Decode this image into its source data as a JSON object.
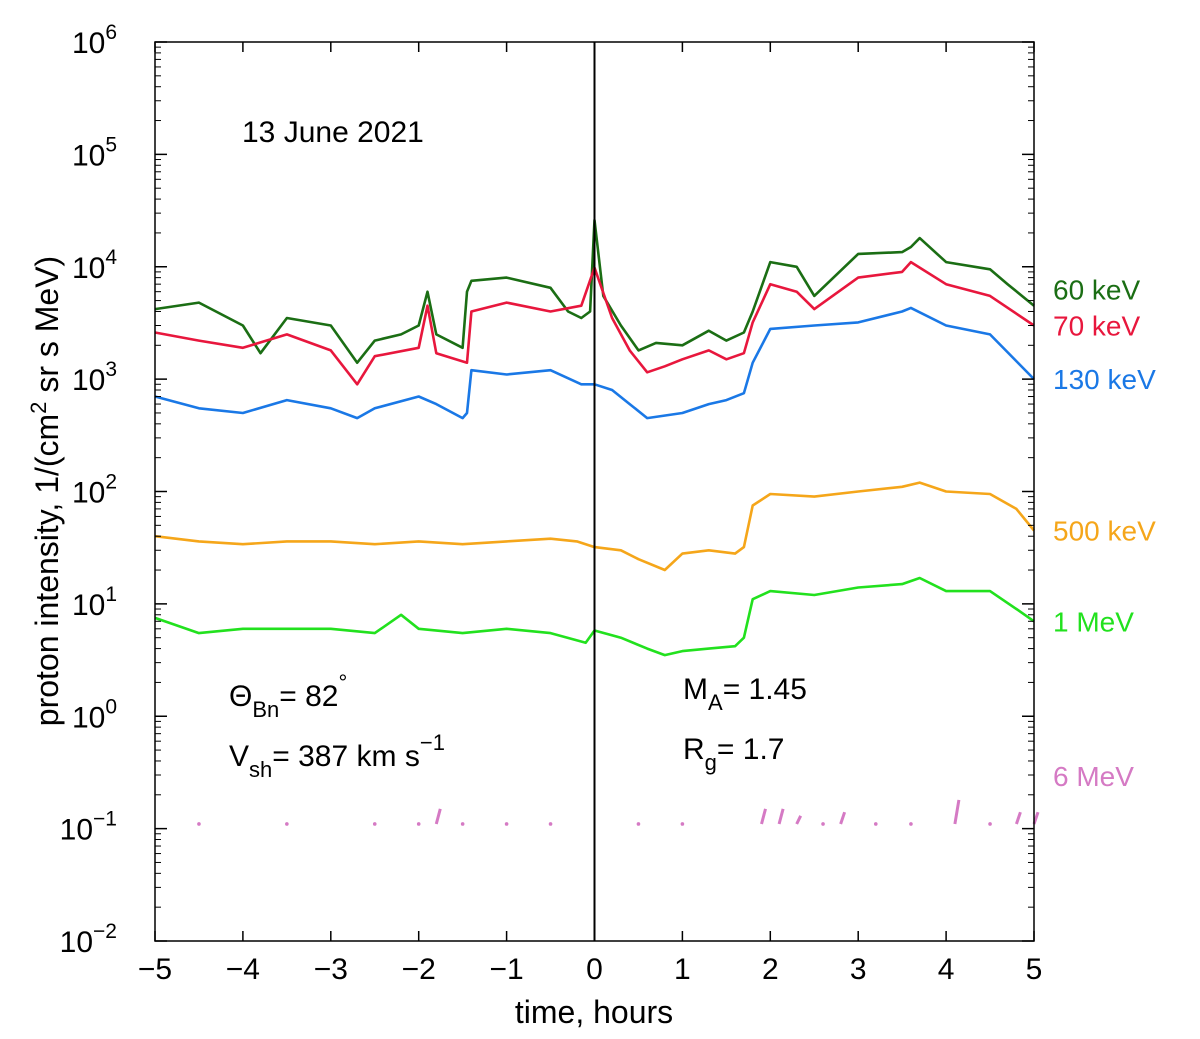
{
  "chart_data": {
    "type": "line",
    "title": "",
    "annotation_date": "13 June 2021",
    "xlabel": "time, hours",
    "ylabel_main": "proton intensity, 1/(cm",
    "ylabel_sup": "2",
    "ylabel_end": " sr s MeV)",
    "xlim": [
      -5,
      5
    ],
    "ylim_log10": [
      -2,
      6
    ],
    "x_ticks": [
      -5,
      -4,
      -3,
      -2,
      -1,
      0,
      1,
      2,
      3,
      4,
      5
    ],
    "x_tick_labels": [
      "−5",
      "−4",
      "−3",
      "−2",
      "−1",
      "0",
      "1",
      "2",
      "3",
      "4",
      "5"
    ],
    "y_tick_exponents": [
      -2,
      -1,
      0,
      1,
      2,
      3,
      4,
      5,
      6
    ],
    "y_tick_exponent_labels": [
      "−2",
      "−1",
      "0",
      "1",
      "2",
      "3",
      "4",
      "5",
      "6"
    ],
    "y_tick_base": "10",
    "shock_time": 0,
    "parameters": {
      "theta": {
        "symbol": "Θ",
        "sub": "Bn",
        "rest": "= 82",
        "sup": "°"
      },
      "vsh": {
        "symbol": "V",
        "sub": "sh",
        "rest": "= 387 km s",
        "sup": "−1"
      },
      "ma": {
        "symbol": "M",
        "sub": "A",
        "rest": "= 1.45"
      },
      "rg": {
        "symbol": "R",
        "sub": "g",
        "rest": "= 1.7"
      }
    },
    "series": [
      {
        "name": "60 keV",
        "color": "#1b6e14",
        "x": [
          -5,
          -4.5,
          -4,
          -3.8,
          -3.5,
          -3,
          -2.7,
          -2.5,
          -2.2,
          -2,
          -1.9,
          -1.8,
          -1.5,
          -1.45,
          -1.4,
          -1,
          -0.5,
          -0.3,
          -0.15,
          -0.05,
          0,
          0.1,
          0.3,
          0.5,
          0.7,
          1,
          1.3,
          1.5,
          1.7,
          1.8,
          2,
          2.3,
          2.5,
          3,
          3.5,
          3.6,
          3.7,
          4,
          4.5,
          4.7,
          5
        ],
        "y": [
          4200,
          4800,
          3000,
          1700,
          3500,
          3000,
          1400,
          2200,
          2500,
          3000,
          6000,
          2500,
          1900,
          6000,
          7500,
          8000,
          6500,
          4000,
          3500,
          4000,
          26000,
          5500,
          3000,
          1800,
          2100,
          2000,
          2700,
          2200,
          2600,
          4000,
          11000,
          10000,
          5500,
          13000,
          13500,
          15000,
          18000,
          11000,
          9500,
          7000,
          4500
        ]
      },
      {
        "name": "70 keV",
        "color": "#e8173d",
        "x": [
          -5,
          -4.5,
          -4,
          -3.5,
          -3,
          -2.7,
          -2.5,
          -2,
          -1.9,
          -1.8,
          -1.45,
          -1.4,
          -1,
          -0.5,
          -0.15,
          0,
          0.2,
          0.4,
          0.6,
          0.8,
          1,
          1.3,
          1.5,
          1.7,
          1.8,
          2,
          2.3,
          2.5,
          3,
          3.5,
          3.6,
          4,
          4.5,
          5
        ],
        "y": [
          2600,
          2200,
          1900,
          2500,
          1800,
          900,
          1600,
          1900,
          4500,
          1700,
          1400,
          4000,
          4800,
          4000,
          4500,
          9800,
          3500,
          1800,
          1150,
          1300,
          1500,
          1800,
          1500,
          1700,
          3200,
          7000,
          6000,
          4200,
          8000,
          9000,
          11000,
          7000,
          5500,
          3000
        ]
      },
      {
        "name": "130 keV",
        "color": "#1a78e6",
        "x": [
          -5,
          -4.5,
          -4,
          -3.5,
          -3,
          -2.7,
          -2.5,
          -2,
          -1.8,
          -1.5,
          -1.45,
          -1.4,
          -1,
          -0.5,
          -0.15,
          0,
          0.2,
          0.4,
          0.6,
          1,
          1.3,
          1.5,
          1.7,
          1.8,
          2,
          2.5,
          3,
          3.5,
          3.6,
          4,
          4.5,
          5
        ],
        "y": [
          700,
          550,
          500,
          650,
          550,
          450,
          550,
          700,
          600,
          450,
          500,
          1200,
          1100,
          1200,
          900,
          900,
          800,
          600,
          450,
          500,
          600,
          650,
          750,
          1400,
          2800,
          3000,
          3200,
          4000,
          4300,
          3000,
          2500,
          1000
        ]
      },
      {
        "name": "500 keV",
        "color": "#f5a61a",
        "x": [
          -5,
          -4.5,
          -4,
          -3.5,
          -3,
          -2.5,
          -2,
          -1.5,
          -1,
          -0.5,
          -0.2,
          0,
          0.3,
          0.5,
          0.8,
          1,
          1.3,
          1.6,
          1.7,
          1.8,
          2,
          2.5,
          3,
          3.5,
          3.7,
          4,
          4.5,
          4.8,
          5
        ],
        "y": [
          40,
          36,
          34,
          36,
          36,
          34,
          36,
          34,
          36,
          38,
          36,
          32,
          30,
          25,
          20,
          28,
          30,
          28,
          32,
          75,
          95,
          90,
          100,
          110,
          120,
          100,
          95,
          70,
          45
        ]
      },
      {
        "name": "1 MeV",
        "color": "#22e11e",
        "x": [
          -5,
          -4.5,
          -4,
          -3.5,
          -3,
          -2.5,
          -2.2,
          -2,
          -1.5,
          -1,
          -0.5,
          -0.1,
          0,
          0.3,
          0.6,
          0.8,
          1,
          1.3,
          1.6,
          1.7,
          1.8,
          2,
          2.5,
          3,
          3.5,
          3.7,
          4,
          4.5,
          4.8,
          5
        ],
        "y": [
          7.5,
          5.5,
          6,
          6,
          6,
          5.5,
          8,
          6,
          5.5,
          6,
          5.5,
          4.5,
          5.8,
          5,
          4,
          3.5,
          3.8,
          4,
          4.2,
          5,
          11,
          13,
          12,
          14,
          15,
          17,
          13,
          13,
          9,
          7
        ]
      },
      {
        "name": "6 MeV",
        "color": "#d57ac4",
        "x": [
          -4.5,
          -3.5,
          -2.5,
          -2,
          -1.8,
          -1.5,
          -1,
          -0.5,
          0.5,
          1,
          1.9,
          2.1,
          2.3,
          2.6,
          2.8,
          3.2,
          3.6,
          4.1,
          4.5,
          4.8,
          5
        ],
        "y": [
          0.11,
          0.11,
          0.11,
          0.11,
          0.15,
          0.11,
          0.11,
          0.11,
          0.11,
          0.11,
          0.15,
          0.15,
          0.13,
          0.11,
          0.14,
          0.11,
          0.11,
          0.18,
          0.11,
          0.14,
          0.14
        ]
      }
    ]
  }
}
